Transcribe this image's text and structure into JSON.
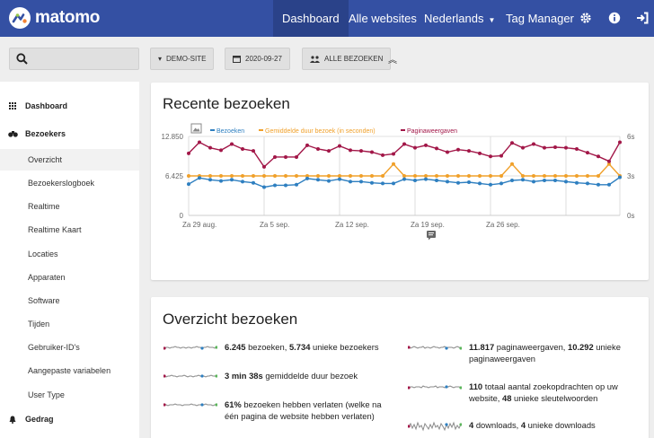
{
  "app": {
    "name": "matomo"
  },
  "topnav": {
    "items": [
      "Dashboard",
      "Alle websites",
      "Nederlands",
      "Tag Manager"
    ],
    "active": "Dashboard"
  },
  "controls": {
    "site": "DEMO-SITE",
    "date": "2020-09-27",
    "segment": "ALLE BEZOEKEN"
  },
  "sidebar": {
    "sections": [
      {
        "label": "Dashboard",
        "icon": "grid-icon"
      },
      {
        "label": "Bezoekers",
        "icon": "binoculars-icon"
      },
      {
        "label": "Gedrag",
        "icon": "bell-icon"
      }
    ],
    "items": [
      "Overzicht",
      "Bezoekerslogboek",
      "Realtime",
      "Realtime Kaart",
      "Locaties",
      "Apparaten",
      "Software",
      "Tijden",
      "Gebruiker-ID's",
      "Aangepaste variabelen",
      "User Type"
    ],
    "active_item": "Overzicht"
  },
  "recent_visits": {
    "title": "Recente bezoeken"
  },
  "chart_data": {
    "type": "line",
    "series_names": [
      "Bezoeken",
      "Gemiddelde duur bezoek (in seconden)",
      "Paginaweergaven"
    ],
    "colors": [
      "#2e7fc0",
      "#f0a02a",
      "#a21748"
    ],
    "x_tick_labels": [
      "Za 29 aug.",
      "Za 5 sep.",
      "Za 12 sep.",
      "Za 19 sep.",
      "Za 26 sep."
    ],
    "y_left_ticks": [
      "12.850",
      "6.425",
      "0"
    ],
    "y_right_ticks": [
      "6s",
      "3s",
      "0s"
    ],
    "ylim_left": [
      0,
      12850
    ],
    "ylim_right": [
      0,
      6
    ],
    "series": [
      {
        "name": "Bezoeken",
        "axis": "left",
        "values": [
          5100,
          6100,
          5800,
          5600,
          5800,
          5500,
          5300,
          4600,
          4900,
          4900,
          5000,
          6000,
          5800,
          5600,
          5900,
          5500,
          5500,
          5300,
          5200,
          5200,
          5900,
          5700,
          5900,
          5700,
          5500,
          5300,
          5400,
          5200,
          5000,
          5200,
          5700,
          5800,
          5500,
          5700,
          5700,
          5500,
          5300,
          5200,
          5000,
          5000,
          6200
        ]
      },
      {
        "name": "Gemiddelde duur bezoek (in seconden)",
        "axis": "right",
        "values": [
          3,
          3,
          3,
          3,
          3,
          3,
          3,
          3,
          3,
          3,
          3,
          3,
          3,
          3,
          3,
          3,
          3,
          3,
          3,
          3.9,
          3,
          3,
          3,
          3,
          3,
          3,
          3,
          3,
          3,
          3,
          3.9,
          3,
          3,
          3,
          3,
          3,
          3,
          3,
          3,
          3.9,
          3
        ]
      },
      {
        "name": "Paginaweergaven",
        "axis": "left",
        "values": [
          10100,
          11900,
          11000,
          10600,
          11600,
          10800,
          10500,
          7900,
          9500,
          9500,
          9500,
          11400,
          10800,
          10500,
          11300,
          10600,
          10500,
          10300,
          9800,
          10000,
          11600,
          11000,
          11400,
          10900,
          10300,
          10700,
          10500,
          10100,
          9600,
          9700,
          11800,
          11000,
          11600,
          11000,
          11100,
          11000,
          10800,
          10200,
          9600,
          8800,
          11900
        ]
      }
    ]
  },
  "overview": {
    "title": "Overzicht bezoeken",
    "stats": [
      {
        "bold1": "6.245",
        "text1": " bezoeken, ",
        "bold2": "5.734",
        "text2": " unieke bezoekers"
      },
      {
        "bold1": "3 min 38s",
        "text1": " gemiddelde duur bezoek",
        "bold2": "",
        "text2": ""
      },
      {
        "bold1": "61%",
        "text1": " bezoeken hebben verlaten (welke na één pagina de website hebben verlaten)",
        "bold2": "",
        "text2": ""
      },
      {
        "bold1": "11.817",
        "text1": " paginaweergaven, ",
        "bold2": "10.292",
        "text2": " unieke paginaweergaven"
      },
      {
        "bold1": "110",
        "text1": " totaal aantal zoekopdrachten op uw website, ",
        "bold2": "48",
        "text2": " unieke sleutelwoorden"
      },
      {
        "bold1": "4",
        "text1": " downloads, ",
        "bold2": "4",
        "text2": " unieke downloads"
      }
    ]
  }
}
